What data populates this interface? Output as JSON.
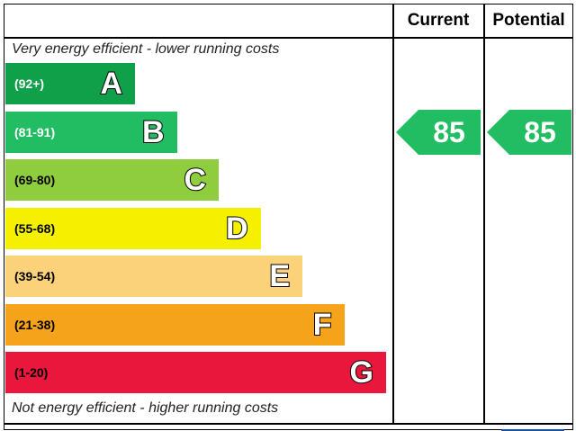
{
  "chart_data": {
    "type": "bar",
    "columns": [
      "Current",
      "Potential"
    ],
    "top_caption": "Very energy efficient - lower running costs",
    "bottom_caption": "Not energy efficient - higher running costs",
    "bands": [
      {
        "letter": "A",
        "range": "(92+)",
        "min": 92,
        "max": 100,
        "color": "#10a04a",
        "range_color": "#ffffff"
      },
      {
        "letter": "B",
        "range": "(81-91)",
        "min": 81,
        "max": 91,
        "color": "#22bd62",
        "range_color": "#ffffff"
      },
      {
        "letter": "C",
        "range": "(69-80)",
        "min": 69,
        "max": 80,
        "color": "#8fcc3e",
        "range_color": "#000000"
      },
      {
        "letter": "D",
        "range": "(55-68)",
        "min": 55,
        "max": 68,
        "color": "#f4f000",
        "range_color": "#000000"
      },
      {
        "letter": "E",
        "range": "(39-54)",
        "min": 39,
        "max": 54,
        "color": "#fbd27a",
        "range_color": "#000000"
      },
      {
        "letter": "F",
        "range": "(21-38)",
        "min": 21,
        "max": 38,
        "color": "#f5a31a",
        "range_color": "#000000"
      },
      {
        "letter": "G",
        "range": "(1-20)",
        "min": 1,
        "max": 20,
        "color": "#e8173b",
        "range_color": "#000000"
      }
    ],
    "current": {
      "value": 85,
      "label": "85",
      "band": "B",
      "color": "#22bd62"
    },
    "potential": {
      "value": 85,
      "label": "85",
      "band": "B",
      "color": "#22bd62"
    }
  }
}
